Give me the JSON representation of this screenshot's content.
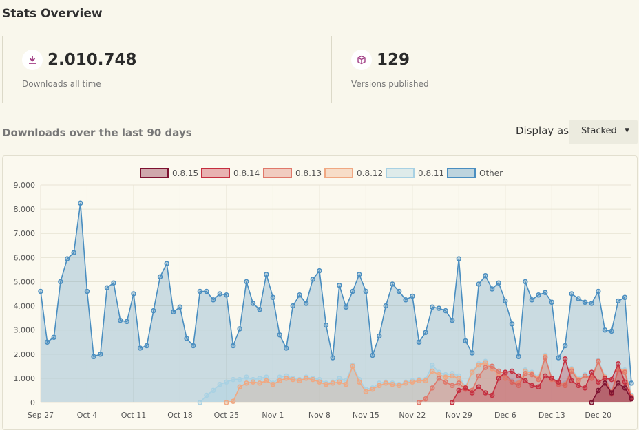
{
  "header": {
    "title": "Stats Overview"
  },
  "stats": [
    {
      "icon": "download-icon",
      "value": "2.010.748",
      "label": "Downloads all time"
    },
    {
      "icon": "box-icon",
      "value": "129",
      "label": "Versions published"
    }
  ],
  "downloads": {
    "section_title": "Downloads over the last 90 days",
    "display_as_label": "Display as",
    "display_mode": "Stacked"
  },
  "colors": {
    "other": "#4a8ec0",
    "v0811": "#a8d1e3",
    "v0812": "#f0a882",
    "v0813": "#e0786a",
    "v0814": "#c52e3f",
    "v0815": "#7d1130"
  },
  "chart_data": {
    "type": "area",
    "stacked": true,
    "x": [
      "2023-09-27",
      "2023-09-28",
      "2023-09-29",
      "2023-09-30",
      "2023-10-01",
      "2023-10-02",
      "2023-10-03",
      "2023-10-04",
      "2023-10-05",
      "2023-10-06",
      "2023-10-07",
      "2023-10-08",
      "2023-10-09",
      "2023-10-10",
      "2023-10-11",
      "2023-10-12",
      "2023-10-13",
      "2023-10-14",
      "2023-10-15",
      "2023-10-16",
      "2023-10-17",
      "2023-10-18",
      "2023-10-19",
      "2023-10-20",
      "2023-10-21",
      "2023-10-22",
      "2023-10-23",
      "2023-10-24",
      "2023-10-25",
      "2023-10-26",
      "2023-10-27",
      "2023-10-28",
      "2023-10-29",
      "2023-10-30",
      "2023-10-31",
      "2023-11-01",
      "2023-11-02",
      "2023-11-03",
      "2023-11-04",
      "2023-11-05",
      "2023-11-06",
      "2023-11-07",
      "2023-11-08",
      "2023-11-09",
      "2023-11-10",
      "2023-11-11",
      "2023-11-12",
      "2023-11-13",
      "2023-11-14",
      "2023-11-15",
      "2023-11-16",
      "2023-11-17",
      "2023-11-18",
      "2023-11-19",
      "2023-11-20",
      "2023-11-21",
      "2023-11-22",
      "2023-11-23",
      "2023-11-24",
      "2023-11-25",
      "2023-11-26",
      "2023-11-27",
      "2023-11-28",
      "2023-11-29",
      "2023-11-30",
      "2023-12-01",
      "2023-12-02",
      "2023-12-03",
      "2023-12-04",
      "2023-12-05",
      "2023-12-06",
      "2023-12-07",
      "2023-12-08",
      "2023-12-09",
      "2023-12-10",
      "2023-12-11",
      "2023-12-12",
      "2023-12-13",
      "2023-12-14",
      "2023-12-15",
      "2023-12-16",
      "2023-12-17",
      "2023-12-18",
      "2023-12-19",
      "2023-12-20",
      "2023-12-21",
      "2023-12-22",
      "2023-12-23",
      "2023-12-24",
      "2023-12-25"
    ],
    "x_ticks": [
      "Sep 27",
      "Oct 4",
      "Oct 11",
      "Oct 18",
      "Oct 25",
      "Nov 1",
      "Nov 8",
      "Nov 15",
      "Nov 22",
      "Nov 29",
      "Dec 6",
      "Dec 13",
      "Dec 20"
    ],
    "x_tick_values": [
      "2023-09-27",
      "2023-10-04",
      "2023-10-11",
      "2023-10-18",
      "2023-10-25",
      "2023-11-01",
      "2023-11-08",
      "2023-11-15",
      "2023-11-22",
      "2023-11-29",
      "2023-12-06",
      "2023-12-13",
      "2023-12-20"
    ],
    "y_ticks": [
      "0",
      "1.000",
      "2.000",
      "3.000",
      "4.000",
      "5.000",
      "6.000",
      "7.000",
      "8.000",
      "9.000"
    ],
    "ylim": [
      0,
      9000
    ],
    "grid": true,
    "legend": "top",
    "series": [
      {
        "name": "0.8.15",
        "color_key": "v0815",
        "values": [
          0,
          0,
          0,
          0,
          0,
          0,
          0,
          0,
          0,
          0,
          0,
          0,
          0,
          0,
          0,
          0,
          0,
          0,
          0,
          0,
          0,
          0,
          0,
          0,
          0,
          0,
          0,
          0,
          0,
          0,
          0,
          0,
          0,
          0,
          0,
          0,
          0,
          0,
          0,
          0,
          0,
          0,
          0,
          0,
          0,
          0,
          0,
          0,
          0,
          0,
          0,
          0,
          0,
          0,
          0,
          0,
          0,
          0,
          0,
          0,
          0,
          0,
          0,
          0,
          0,
          0,
          0,
          0,
          0,
          0,
          0,
          0,
          0,
          0,
          0,
          0,
          0,
          0,
          0,
          0,
          0,
          0,
          0,
          0,
          0,
          0,
          0,
          0,
          0,
          0
        ]
      },
      {
        "name": "0.8.14",
        "color_key": "v0814",
        "values": [
          0,
          0,
          0,
          0,
          0,
          0,
          0,
          0,
          0,
          0,
          0,
          0,
          0,
          0,
          0,
          0,
          0,
          0,
          0,
          0,
          0,
          0,
          0,
          0,
          0,
          0,
          0,
          0,
          0,
          0,
          0,
          0,
          0,
          0,
          0,
          0,
          0,
          0,
          0,
          0,
          0,
          0,
          0,
          0,
          0,
          0,
          0,
          0,
          0,
          0,
          0,
          0,
          0,
          0,
          0,
          0,
          0,
          0,
          0,
          0,
          0,
          0,
          0,
          0,
          0,
          0,
          0,
          0,
          0,
          0,
          0,
          0,
          0,
          0,
          0,
          0,
          0,
          0,
          0,
          0,
          0,
          0,
          0,
          0,
          0,
          0,
          0,
          0,
          0,
          0
        ]
      },
      {
        "name": "0.8.13",
        "color_key": "v0813",
        "values": [
          0,
          0,
          0,
          0,
          0,
          0,
          0,
          0,
          0,
          0,
          0,
          0,
          0,
          0,
          0,
          0,
          0,
          0,
          0,
          0,
          0,
          0,
          0,
          0,
          0,
          0,
          0,
          0,
          0,
          0,
          0,
          0,
          0,
          0,
          0,
          0,
          0,
          0,
          0,
          0,
          0,
          0,
          0,
          0,
          0,
          0,
          0,
          0,
          0,
          0,
          0,
          0,
          0,
          0,
          0,
          0,
          0,
          0,
          0,
          0,
          0,
          0,
          0,
          0,
          0,
          0,
          0,
          0,
          0,
          0,
          0,
          0,
          0,
          0,
          0,
          0,
          0,
          0,
          0,
          0,
          0,
          0,
          0,
          0,
          0,
          0,
          0,
          0,
          0,
          0
        ]
      },
      {
        "name": "0.8.12",
        "color_key": "v0812",
        "values": [
          0,
          0,
          0,
          0,
          0,
          0,
          0,
          0,
          0,
          0,
          0,
          0,
          0,
          0,
          0,
          0,
          0,
          0,
          0,
          0,
          0,
          0,
          0,
          0,
          0,
          0,
          0,
          0,
          0,
          0,
          0,
          0,
          0,
          0,
          0,
          0,
          0,
          0,
          0,
          0,
          0,
          0,
          0,
          0,
          0,
          0,
          0,
          0,
          0,
          0,
          0,
          0,
          0,
          0,
          0,
          0,
          0,
          0,
          0,
          0,
          0,
          0,
          0,
          0,
          0,
          0,
          0,
          0,
          0,
          0,
          0,
          0,
          0,
          0,
          0,
          0,
          0,
          0,
          0,
          0,
          0,
          0,
          0,
          0,
          0,
          0,
          0,
          0,
          0,
          0
        ]
      },
      {
        "name": "0.8.11",
        "color_key": "v0811",
        "values": [
          0,
          0,
          0,
          0,
          0,
          0,
          0,
          0,
          0,
          0,
          0,
          0,
          0,
          0,
          0,
          0,
          0,
          0,
          0,
          0,
          0,
          0,
          0,
          0,
          0,
          0,
          0,
          0,
          0,
          0,
          0,
          0,
          0,
          0,
          0,
          0,
          0,
          0,
          0,
          0,
          0,
          0,
          0,
          0,
          0,
          0,
          0,
          0,
          0,
          0,
          0,
          0,
          0,
          0,
          0,
          0,
          0,
          0,
          0,
          0,
          0,
          0,
          0,
          0,
          0,
          0,
          0,
          0,
          0,
          0,
          0,
          0,
          0,
          0,
          0,
          0,
          0,
          0,
          0,
          0,
          0,
          0,
          0,
          0,
          0,
          0,
          0,
          0,
          0,
          0
        ]
      },
      {
        "name": "Other",
        "color_key": "other",
        "values": [
          0,
          0,
          0,
          0,
          0,
          0,
          0,
          0,
          0,
          0,
          0,
          0,
          0,
          0,
          0,
          0,
          0,
          0,
          0,
          0,
          0,
          0,
          0,
          0,
          0,
          0,
          0,
          0,
          0,
          0,
          0,
          0,
          0,
          0,
          0,
          0,
          0,
          0,
          0,
          0,
          0,
          0,
          0,
          0,
          0,
          0,
          0,
          0,
          0,
          0,
          0,
          0,
          0,
          0,
          0,
          0,
          0,
          0,
          0,
          0,
          0,
          0,
          0,
          0,
          0,
          0,
          0,
          0,
          0,
          0,
          0,
          0,
          0,
          0,
          0,
          0,
          0,
          0,
          0,
          0,
          0,
          0,
          0,
          0,
          0,
          0,
          0,
          0,
          0,
          0
        ]
      }
    ],
    "cumulative_top": {
      "v0815": [
        null,
        null,
        null,
        null,
        null,
        null,
        null,
        null,
        null,
        null,
        null,
        null,
        null,
        null,
        null,
        null,
        null,
        null,
        null,
        null,
        null,
        null,
        null,
        null,
        null,
        null,
        null,
        null,
        null,
        null,
        null,
        null,
        null,
        null,
        null,
        null,
        null,
        null,
        null,
        null,
        null,
        null,
        null,
        null,
        null,
        null,
        null,
        null,
        null,
        null,
        null,
        null,
        null,
        null,
        null,
        null,
        null,
        null,
        null,
        null,
        null,
        null,
        null,
        null,
        null,
        null,
        null,
        null,
        null,
        null,
        null,
        null,
        null,
        null,
        null,
        null,
        null,
        null,
        null,
        null,
        null,
        null,
        null,
        0,
        500,
        800,
        400,
        800,
        600,
        150
      ],
      "v0814": [
        null,
        null,
        null,
        null,
        null,
        null,
        null,
        null,
        null,
        null,
        null,
        null,
        null,
        null,
        null,
        null,
        null,
        null,
        null,
        null,
        null,
        null,
        null,
        null,
        null,
        null,
        null,
        null,
        null,
        null,
        null,
        null,
        null,
        null,
        null,
        null,
        null,
        null,
        null,
        null,
        null,
        null,
        null,
        null,
        null,
        null,
        null,
        null,
        null,
        null,
        null,
        null,
        null,
        null,
        null,
        null,
        null,
        null,
        null,
        null,
        null,
        null,
        0,
        500,
        600,
        400,
        650,
        400,
        300,
        1000,
        1250,
        1300,
        1100,
        900,
        700,
        650,
        1100,
        1000,
        850,
        1800,
        900,
        700,
        600,
        1250,
        850,
        1000,
        950,
        1600,
        850,
        200
      ],
      "v0813": [
        null,
        null,
        null,
        null,
        null,
        null,
        null,
        null,
        null,
        null,
        null,
        null,
        null,
        null,
        null,
        null,
        null,
        null,
        null,
        null,
        null,
        null,
        null,
        null,
        null,
        null,
        null,
        null,
        null,
        null,
        null,
        null,
        null,
        null,
        null,
        null,
        null,
        null,
        null,
        null,
        null,
        null,
        null,
        null,
        null,
        null,
        null,
        null,
        null,
        null,
        null,
        null,
        null,
        null,
        null,
        null,
        null,
        0,
        150,
        600,
        1000,
        850,
        700,
        800,
        550,
        500,
        1100,
        1450,
        1500,
        1300,
        1200,
        850,
        700,
        1200,
        1150,
        950,
        1850,
        1000,
        750,
        700,
        1300,
        900,
        1100,
        1000,
        1700,
        1000,
        350,
        1350,
        1250,
        200
      ],
      "v0812": [
        null,
        null,
        null,
        null,
        null,
        null,
        null,
        null,
        null,
        null,
        null,
        null,
        null,
        null,
        null,
        null,
        null,
        null,
        null,
        null,
        null,
        null,
        null,
        null,
        null,
        null,
        null,
        null,
        0,
        50,
        650,
        800,
        850,
        800,
        900,
        750,
        900,
        1000,
        950,
        900,
        1000,
        950,
        850,
        750,
        800,
        850,
        750,
        1500,
        850,
        450,
        550,
        700,
        800,
        750,
        700,
        800,
        850,
        900,
        900,
        1300,
        1150,
        1050,
        1100,
        1000,
        600,
        1250,
        1550,
        1650,
        1400,
        1200,
        1000,
        850,
        800,
        1300,
        1200,
        1000,
        1900,
        950,
        800,
        750,
        1350,
        950,
        1100,
        1050,
        1700,
        1050,
        400,
        1400,
        1300,
        250
      ],
      "v0811": [
        null,
        null,
        null,
        null,
        null,
        null,
        null,
        null,
        null,
        null,
        null,
        null,
        null,
        null,
        null,
        null,
        null,
        null,
        null,
        null,
        null,
        null,
        null,
        null,
        0,
        300,
        500,
        750,
        850,
        950,
        950,
        1050,
        950,
        1000,
        1050,
        800,
        1050,
        1100,
        1000,
        950,
        1050,
        1000,
        950,
        800,
        850,
        1000,
        900,
        1550,
        950,
        550,
        600,
        800,
        850,
        800,
        750,
        850,
        900,
        950,
        950,
        1550,
        1250,
        1150,
        1200,
        1100,
        650,
        1300,
        1600,
        1700,
        1450,
        1250,
        1050,
        900,
        850,
        1350,
        1250,
        1050,
        1950,
        1000,
        850,
        800,
        1400,
        1000,
        1150,
        1100,
        1750,
        1100,
        450,
        1450,
        1350,
        300
      ],
      "other": [
        4600,
        2500,
        2700,
        5000,
        5950,
        6200,
        8250,
        4600,
        1900,
        2000,
        4750,
        4950,
        3400,
        3350,
        4500,
        2250,
        2350,
        3800,
        5200,
        5750,
        3750,
        3950,
        2650,
        2350,
        4600,
        4600,
        4250,
        4500,
        4450,
        2350,
        3050,
        5000,
        4100,
        3850,
        5300,
        4350,
        2800,
        2250,
        4000,
        4450,
        4100,
        5100,
        5450,
        3200,
        1850,
        4850,
        3950,
        4600,
        5300,
        4600,
        1950,
        2750,
        4000,
        4900,
        4600,
        4250,
        4400,
        2500,
        2900,
        3950,
        3900,
        3800,
        3400,
        5950,
        2550,
        2050,
        4900,
        5250,
        4700,
        4950,
        4200,
        3250,
        1900,
        5000,
        4250,
        4450,
        4550,
        4150,
        1850,
        2350,
        4500,
        4300,
        4150,
        4100,
        4600,
        3000,
        2950,
        4200,
        4350,
        800
      ]
    }
  }
}
